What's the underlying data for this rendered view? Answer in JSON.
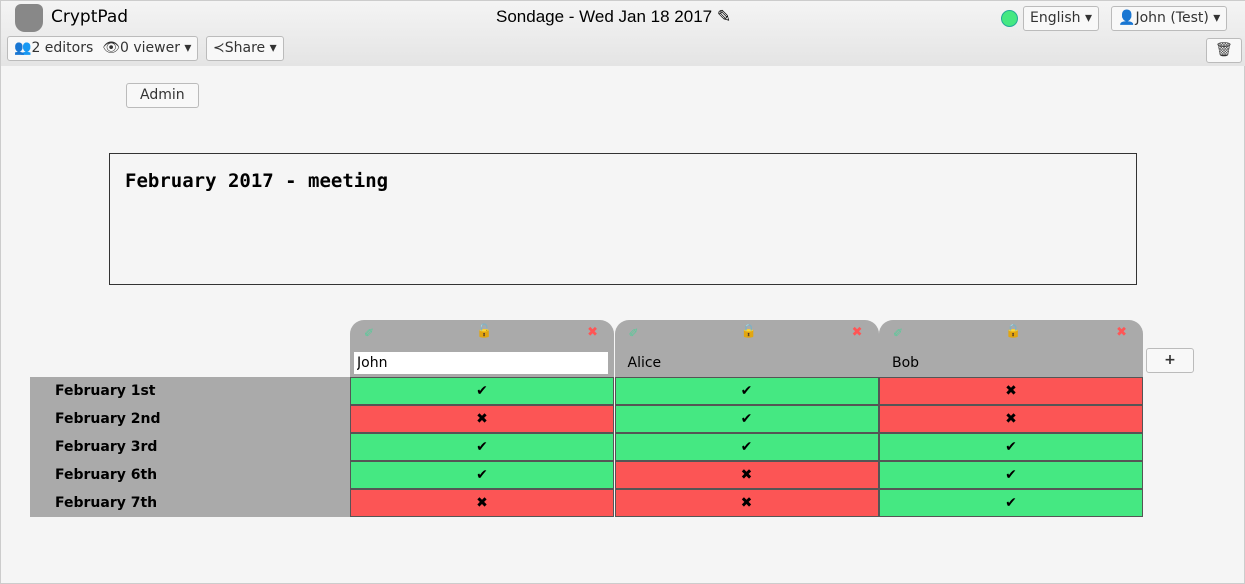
{
  "app": {
    "name": "CryptPad",
    "title": "Sondage - Wed Jan 18 2017",
    "status_color": "#45e882"
  },
  "toolbar": {
    "editors": "2 editors",
    "viewers": "0 viewer",
    "share": "Share",
    "language": "English",
    "user": "John (Test)"
  },
  "admin_label": "Admin",
  "description": "February 2017 - meeting",
  "columns": [
    {
      "name": "John",
      "locked": false,
      "editing": true
    },
    {
      "name": "Alice",
      "locked": true
    },
    {
      "name": "Bob",
      "locked": true
    }
  ],
  "rows": [
    "February 1st",
    "February 2nd",
    "February 3rd",
    "February 6th",
    "February 7th"
  ],
  "votes": [
    [
      true,
      true,
      false
    ],
    [
      false,
      true,
      false
    ],
    [
      true,
      true,
      true
    ],
    [
      true,
      false,
      true
    ],
    [
      false,
      false,
      true
    ]
  ],
  "colors": {
    "yes": "#45e882",
    "no": "#fc5555"
  }
}
